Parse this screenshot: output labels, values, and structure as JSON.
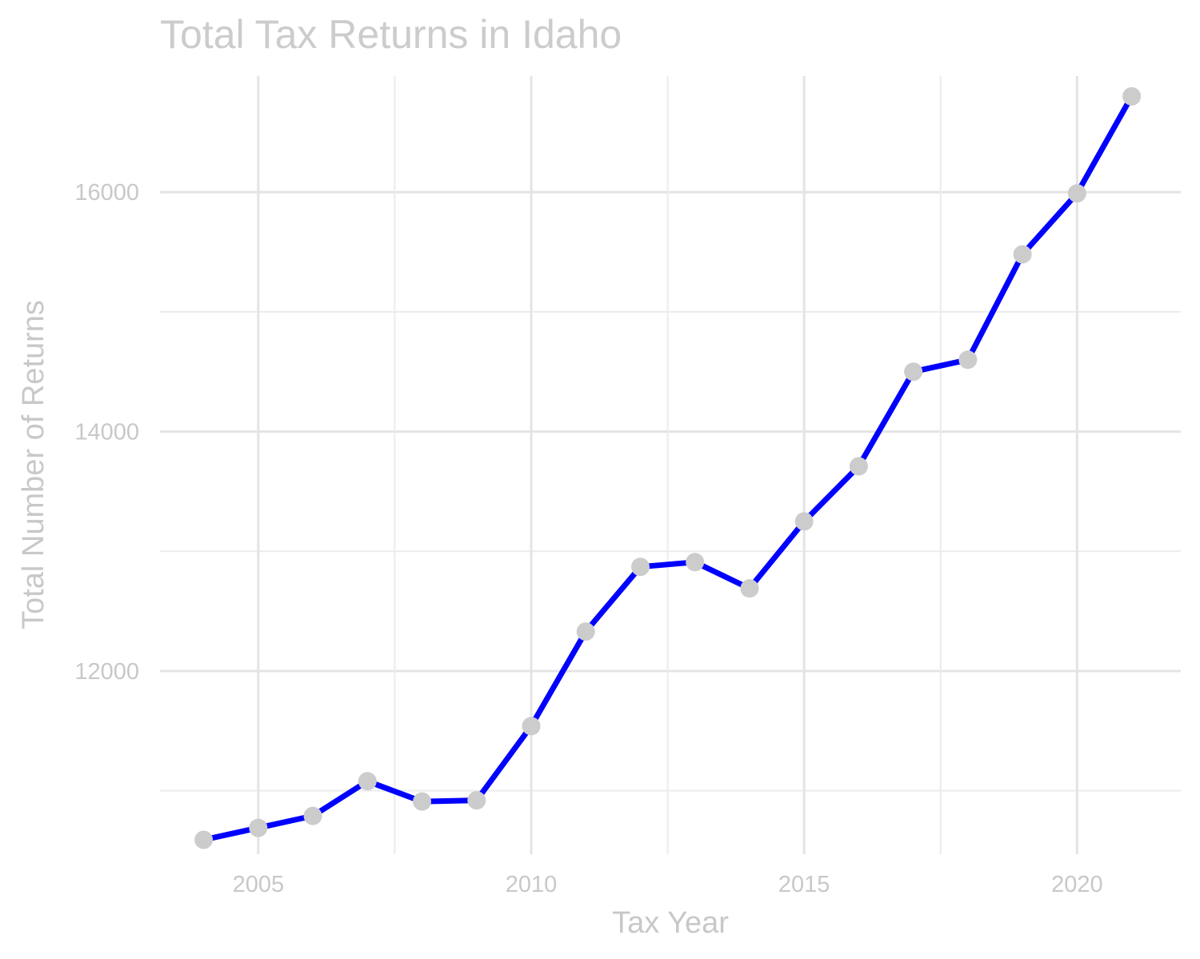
{
  "chart_data": {
    "type": "line",
    "title": "Total Tax Returns in Idaho",
    "xlabel": "Tax Year",
    "ylabel": "Total Number of Returns",
    "x": [
      2004,
      2005,
      2006,
      2007,
      2008,
      2009,
      2010,
      2011,
      2012,
      2013,
      2014,
      2015,
      2016,
      2017,
      2018,
      2019,
      2020,
      2021
    ],
    "series": [
      {
        "values": [
          10590,
          10690,
          10790,
          11080,
          10910,
          10920,
          11540,
          12330,
          12870,
          12910,
          12690,
          13250,
          13710,
          14500,
          14600,
          15480,
          15990,
          16800
        ]
      }
    ],
    "xticks": [
      2005,
      2010,
      2015,
      2020
    ],
    "yticks": [
      12000,
      14000,
      16000
    ],
    "xlim": [
      2003.2,
      2021.9
    ],
    "ylim": [
      10470,
      16970
    ],
    "grid": true,
    "line_color": "#0000ff",
    "point_color": "#cccccc",
    "text_color": "#cccccc"
  }
}
